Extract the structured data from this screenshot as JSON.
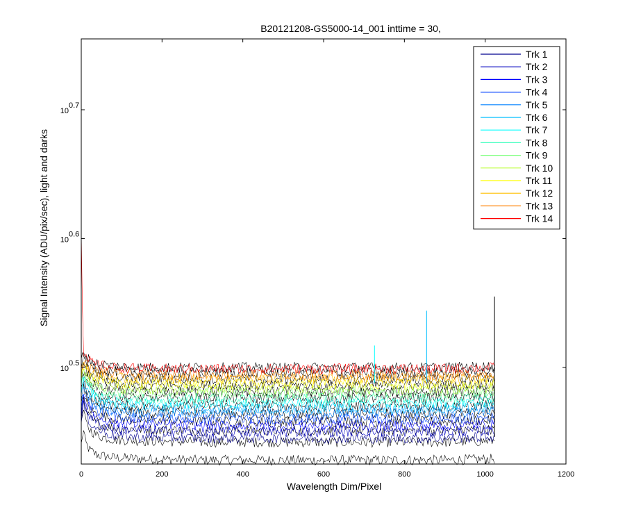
{
  "chart_data": {
    "type": "line",
    "title": "B20121208-GS5000-14_001 inttime = 30,",
    "xlabel": "Wavelength Dim/Pixel",
    "ylabel": "Signal Intensity (ADU/pix/sec), light and darks",
    "y_scale": "log",
    "xlim": [
      0,
      1200
    ],
    "ylim_log10": [
      0.425,
      0.755
    ],
    "x_ticks": [
      0,
      200,
      400,
      600,
      800,
      1000,
      1200
    ],
    "y_ticks": [
      {
        "base": "10",
        "exp": "0.5",
        "value_log10": 0.5
      },
      {
        "base": "10",
        "exp": "0.6",
        "value_log10": 0.6
      },
      {
        "base": "10",
        "exp": "0.7",
        "value_log10": 0.7
      }
    ],
    "x_points": [
      0,
      5,
      10,
      20,
      40,
      80,
      150,
      300,
      500,
      700,
      900,
      1023
    ],
    "legend_position": "top-right",
    "series": [
      {
        "name": "Trk 1",
        "color": "#00008F",
        "log10_values": [
          0.455,
          0.472,
          0.466,
          0.458,
          0.452,
          0.447,
          0.446,
          0.445,
          0.445,
          0.445,
          0.445,
          0.446
        ]
      },
      {
        "name": "Trk 2",
        "color": "#0000BF",
        "log10_values": [
          0.46,
          0.476,
          0.47,
          0.463,
          0.457,
          0.452,
          0.451,
          0.45,
          0.45,
          0.45,
          0.45,
          0.451
        ]
      },
      {
        "name": "Trk 3",
        "color": "#0000FF",
        "log10_values": [
          0.465,
          0.48,
          0.474,
          0.468,
          0.462,
          0.457,
          0.456,
          0.455,
          0.455,
          0.455,
          0.455,
          0.456
        ]
      },
      {
        "name": "Trk 4",
        "color": "#0040FF",
        "log10_values": [
          0.47,
          0.484,
          0.478,
          0.472,
          0.466,
          0.462,
          0.461,
          0.46,
          0.46,
          0.46,
          0.46,
          0.461
        ]
      },
      {
        "name": "Trk 5",
        "color": "#0080FF",
        "log10_values": [
          0.474,
          0.487,
          0.482,
          0.476,
          0.47,
          0.466,
          0.465,
          0.465,
          0.465,
          0.465,
          0.465,
          0.466
        ]
      },
      {
        "name": "Trk 6",
        "color": "#00BFFF",
        "log10_values": [
          0.478,
          0.49,
          0.485,
          0.479,
          0.474,
          0.47,
          0.469,
          0.468,
          0.468,
          0.468,
          0.468,
          0.469
        ]
      },
      {
        "name": "Trk 7",
        "color": "#00FFFF",
        "log10_values": [
          0.481,
          0.492,
          0.488,
          0.482,
          0.477,
          0.473,
          0.472,
          0.472,
          0.472,
          0.472,
          0.472,
          0.473
        ]
      },
      {
        "name": "Trk 8",
        "color": "#40FFBF",
        "log10_values": [
          0.484,
          0.494,
          0.49,
          0.485,
          0.481,
          0.477,
          0.476,
          0.476,
          0.476,
          0.476,
          0.476,
          0.477
        ]
      },
      {
        "name": "Trk 9",
        "color": "#80FF80",
        "log10_values": [
          0.487,
          0.497,
          0.493,
          0.488,
          0.484,
          0.481,
          0.48,
          0.48,
          0.48,
          0.48,
          0.48,
          0.481
        ]
      },
      {
        "name": "Trk 10",
        "color": "#BFFF40",
        "log10_values": [
          0.49,
          0.499,
          0.495,
          0.491,
          0.487,
          0.484,
          0.483,
          0.483,
          0.483,
          0.483,
          0.483,
          0.484
        ]
      },
      {
        "name": "Trk 11",
        "color": "#FFFF00",
        "log10_values": [
          0.493,
          0.501,
          0.498,
          0.494,
          0.491,
          0.488,
          0.487,
          0.487,
          0.487,
          0.487,
          0.487,
          0.488
        ]
      },
      {
        "name": "Trk 12",
        "color": "#FFBF00",
        "log10_values": [
          0.496,
          0.503,
          0.5,
          0.497,
          0.494,
          0.492,
          0.491,
          0.491,
          0.491,
          0.491,
          0.491,
          0.492
        ]
      },
      {
        "name": "Trk 13",
        "color": "#FF8000",
        "log10_values": [
          0.499,
          0.505,
          0.503,
          0.5,
          0.497,
          0.495,
          0.494,
          0.494,
          0.494,
          0.494,
          0.494,
          0.495
        ]
      },
      {
        "name": "Trk 14",
        "color": "#FF0000",
        "log10_values": [
          0.608,
          0.51,
          0.507,
          0.505,
          0.502,
          0.5,
          0.499,
          0.499,
          0.499,
          0.499,
          0.499,
          0.5
        ]
      }
    ],
    "darks": {
      "color": "#000000",
      "log10_values": [
        [
          0.44,
          0.452,
          0.442,
          0.436,
          0.432,
          0.43,
          0.429,
          0.428,
          0.428,
          0.428,
          0.428,
          0.429
        ],
        [
          0.455,
          0.468,
          0.458,
          0.452,
          0.447,
          0.444,
          0.443,
          0.442,
          0.442,
          0.442,
          0.442,
          0.443
        ],
        [
          0.463,
          0.475,
          0.467,
          0.461,
          0.456,
          0.453,
          0.452,
          0.451,
          0.451,
          0.451,
          0.451,
          0.452
        ],
        [
          0.47,
          0.482,
          0.474,
          0.468,
          0.463,
          0.46,
          0.459,
          0.458,
          0.458,
          0.458,
          0.458,
          0.459
        ],
        [
          0.476,
          0.487,
          0.48,
          0.474,
          0.469,
          0.466,
          0.465,
          0.464,
          0.464,
          0.464,
          0.464,
          0.465
        ],
        [
          0.481,
          0.491,
          0.485,
          0.479,
          0.474,
          0.471,
          0.47,
          0.47,
          0.47,
          0.47,
          0.47,
          0.471
        ],
        [
          0.486,
          0.495,
          0.49,
          0.484,
          0.48,
          0.477,
          0.476,
          0.476,
          0.476,
          0.476,
          0.476,
          0.477
        ],
        [
          0.49,
          0.498,
          0.494,
          0.489,
          0.485,
          0.482,
          0.481,
          0.481,
          0.481,
          0.481,
          0.481,
          0.482
        ],
        [
          0.494,
          0.502,
          0.498,
          0.493,
          0.49,
          0.487,
          0.486,
          0.486,
          0.486,
          0.486,
          0.486,
          0.487
        ],
        [
          0.498,
          0.505,
          0.502,
          0.498,
          0.495,
          0.492,
          0.491,
          0.491,
          0.491,
          0.491,
          0.491,
          0.492
        ],
        [
          0.502,
          0.508,
          0.506,
          0.502,
          0.499,
          0.497,
          0.496,
          0.496,
          0.496,
          0.496,
          0.496,
          0.497
        ],
        [
          0.505,
          0.511,
          0.509,
          0.506,
          0.503,
          0.501,
          0.5,
          0.5,
          0.5,
          0.5,
          0.5,
          0.501
        ]
      ]
    },
    "spikes": [
      {
        "x": 855,
        "base_log10": 0.489,
        "peak_log10": 0.544,
        "color": "#00BFFF"
      },
      {
        "x": 726,
        "base_log10": 0.488,
        "peak_log10": 0.517,
        "color": "#00FFFF"
      },
      {
        "x": 1023,
        "base_log10": 0.446,
        "peak_log10": 0.555,
        "color": "#000000"
      }
    ]
  }
}
